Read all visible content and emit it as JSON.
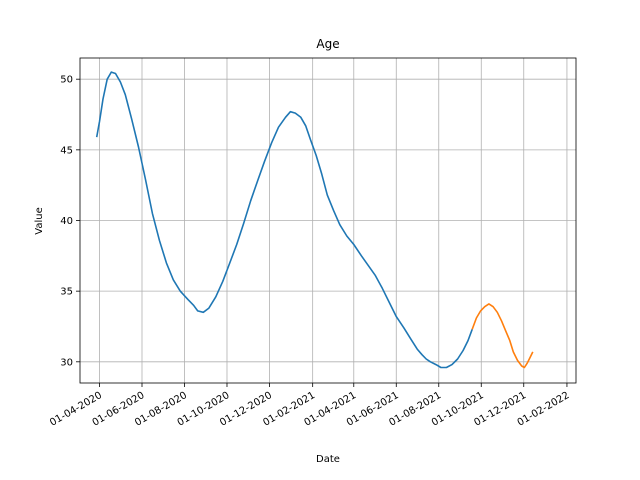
{
  "chart_data": {
    "type": "line",
    "title": "Age",
    "xlabel": "Date",
    "ylabel": "Value",
    "grid": true,
    "xlim": [
      "2020-03-04",
      "2022-02-14"
    ],
    "ylim": [
      28.5,
      51.5
    ],
    "x_ticks": [
      "2020-04-01",
      "2020-06-01",
      "2020-08-01",
      "2020-10-01",
      "2020-12-01",
      "2021-02-01",
      "2021-04-01",
      "2021-06-01",
      "2021-08-01",
      "2021-10-01",
      "2021-12-01",
      "2022-02-01"
    ],
    "x_tick_labels": [
      "01-04-2020",
      "01-06-2020",
      "01-08-2020",
      "01-10-2020",
      "01-12-2020",
      "01-02-2021",
      "01-04-2021",
      "01-06-2021",
      "01-08-2021",
      "01-10-2021",
      "01-12-2021",
      "01-02-2022"
    ],
    "y_ticks": [
      30,
      35,
      40,
      45,
      50
    ],
    "y_tick_labels": [
      "30",
      "35",
      "40",
      "45",
      "50"
    ],
    "series": [
      {
        "color": "#1f77b4",
        "points": [
          [
            "2020-03-28",
            45.9
          ],
          [
            "2020-04-01",
            47.0
          ],
          [
            "2020-04-06",
            48.6
          ],
          [
            "2020-04-12",
            50.0
          ],
          [
            "2020-04-18",
            50.5
          ],
          [
            "2020-04-24",
            50.4
          ],
          [
            "2020-05-01",
            49.8
          ],
          [
            "2020-05-08",
            48.9
          ],
          [
            "2020-05-17",
            47.2
          ],
          [
            "2020-05-27",
            45.2
          ],
          [
            "2020-06-06",
            42.9
          ],
          [
            "2020-06-16",
            40.5
          ],
          [
            "2020-06-26",
            38.6
          ],
          [
            "2020-07-06",
            37.0
          ],
          [
            "2020-07-16",
            35.8
          ],
          [
            "2020-07-26",
            35.0
          ],
          [
            "2020-08-06",
            34.4
          ],
          [
            "2020-08-14",
            34.0
          ],
          [
            "2020-08-20",
            33.6
          ],
          [
            "2020-08-28",
            33.5
          ],
          [
            "2020-09-05",
            33.8
          ],
          [
            "2020-09-15",
            34.6
          ],
          [
            "2020-09-25",
            35.7
          ],
          [
            "2020-10-05",
            37.0
          ],
          [
            "2020-10-15",
            38.3
          ],
          [
            "2020-10-25",
            39.8
          ],
          [
            "2020-11-04",
            41.4
          ],
          [
            "2020-11-14",
            42.8
          ],
          [
            "2020-11-24",
            44.2
          ],
          [
            "2020-12-04",
            45.5
          ],
          [
            "2020-12-14",
            46.6
          ],
          [
            "2020-12-24",
            47.3
          ],
          [
            "2020-12-31",
            47.7
          ],
          [
            "2021-01-07",
            47.6
          ],
          [
            "2021-01-15",
            47.3
          ],
          [
            "2021-01-22",
            46.7
          ],
          [
            "2021-01-29",
            45.7
          ],
          [
            "2021-02-06",
            44.6
          ],
          [
            "2021-02-14",
            43.3
          ],
          [
            "2021-02-22",
            41.8
          ],
          [
            "2021-03-03",
            40.7
          ],
          [
            "2021-03-12",
            39.7
          ],
          [
            "2021-03-22",
            38.9
          ],
          [
            "2021-04-01",
            38.3
          ],
          [
            "2021-04-12",
            37.5
          ],
          [
            "2021-04-22",
            36.8
          ],
          [
            "2021-05-02",
            36.1
          ],
          [
            "2021-05-12",
            35.2
          ],
          [
            "2021-05-22",
            34.2
          ],
          [
            "2021-06-01",
            33.2
          ],
          [
            "2021-06-12",
            32.4
          ],
          [
            "2021-06-22",
            31.6
          ],
          [
            "2021-07-01",
            30.9
          ],
          [
            "2021-07-08",
            30.5
          ],
          [
            "2021-07-14",
            30.2
          ],
          [
            "2021-07-20",
            30.0
          ],
          [
            "2021-07-28",
            29.8
          ],
          [
            "2021-08-04",
            29.6
          ],
          [
            "2021-08-12",
            29.6
          ],
          [
            "2021-08-20",
            29.8
          ],
          [
            "2021-08-28",
            30.2
          ],
          [
            "2021-09-05",
            30.8
          ],
          [
            "2021-09-12",
            31.5
          ],
          [
            "2021-09-18",
            32.3
          ]
        ]
      },
      {
        "color": "#ff7f0e",
        "points": [
          [
            "2021-09-18",
            32.3
          ],
          [
            "2021-09-24",
            33.1
          ],
          [
            "2021-09-30",
            33.6
          ],
          [
            "2021-10-06",
            33.9
          ],
          [
            "2021-10-12",
            34.1
          ],
          [
            "2021-10-18",
            33.9
          ],
          [
            "2021-10-24",
            33.5
          ],
          [
            "2021-10-30",
            32.9
          ],
          [
            "2021-11-05",
            32.2
          ],
          [
            "2021-11-11",
            31.5
          ],
          [
            "2021-11-16",
            30.7
          ],
          [
            "2021-11-22",
            30.1
          ],
          [
            "2021-11-28",
            29.7
          ],
          [
            "2021-12-02",
            29.6
          ],
          [
            "2021-12-06",
            29.9
          ],
          [
            "2021-12-10",
            30.3
          ],
          [
            "2021-12-14",
            30.7
          ]
        ]
      }
    ]
  }
}
